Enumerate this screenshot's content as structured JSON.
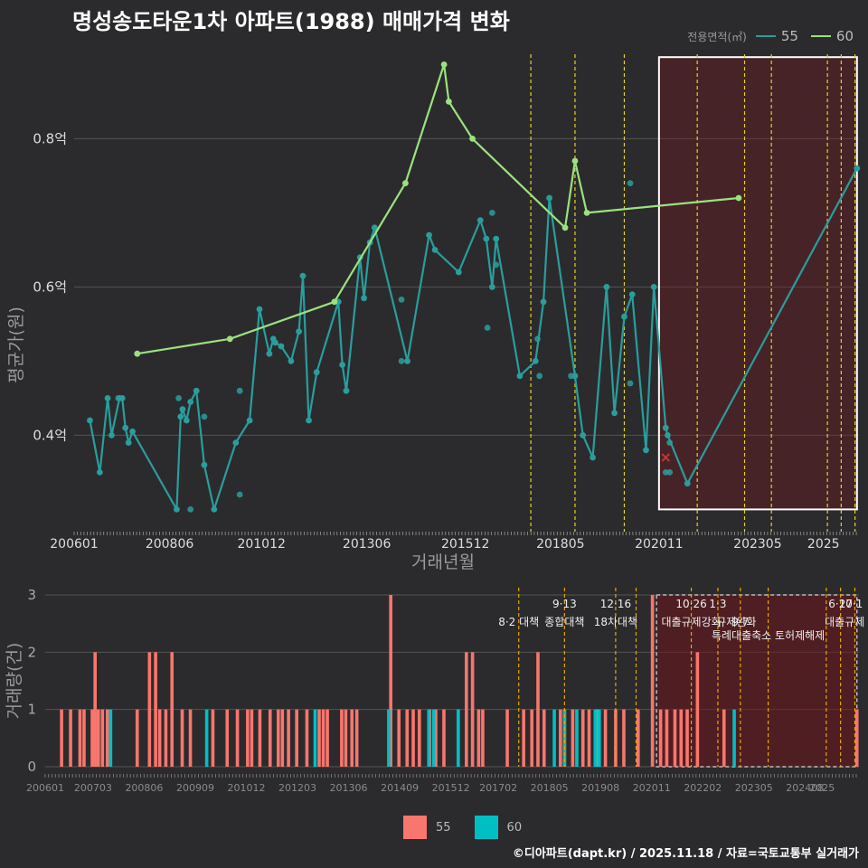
{
  "title": "명성송도타운1차 아파트(1988) 매매가격 변화",
  "footer": "©디아파트(dapt.kr) / 2025.11.18 / 자료=국토교통부 실거래가",
  "legend_top": {
    "title": "전용면적(㎡)",
    "items": [
      {
        "label": "55",
        "color": "#2a9d9c"
      },
      {
        "label": "60",
        "color": "#9be27e"
      }
    ]
  },
  "legend_bottom": {
    "items": [
      {
        "label": "55",
        "color": "#f8766d"
      },
      {
        "label": "60",
        "color": "#00bfc4"
      }
    ]
  },
  "chart_data": [
    {
      "type": "line",
      "title": "명성송도타운1차 아파트(1988) 매매가격 변화",
      "xlabel": "거래년월",
      "ylabel": "평균가(원)",
      "x_range": [
        2006.0,
        2025.9
      ],
      "ylim": [
        0.27,
        0.92
      ],
      "y_ticks": [
        {
          "value": 0.4,
          "label": "0.4억"
        },
        {
          "value": 0.6,
          "label": "0.6억"
        },
        {
          "value": 0.8,
          "label": "0.8억"
        }
      ],
      "x_ticks": [
        {
          "value": 2006.0,
          "label": "200601"
        },
        {
          "value": 2008.42,
          "label": "200806"
        },
        {
          "value": 2010.75,
          "label": "201012"
        },
        {
          "value": 2013.42,
          "label": "201306"
        },
        {
          "value": 2015.92,
          "label": "201512"
        },
        {
          "value": 2018.33,
          "label": "201805"
        },
        {
          "value": 2020.83,
          "label": "202011"
        },
        {
          "value": 2023.33,
          "label": "202305"
        },
        {
          "value": 2025.0,
          "label": "2025"
        }
      ],
      "highlight": {
        "x_start": 2020.83,
        "x_end": 2025.85,
        "y_start": 0.3,
        "y_end": 0.91
      },
      "policy_lines": [
        2017.58,
        2018.7,
        2019.95,
        2021.8,
        2023.0,
        2023.68,
        2025.1,
        2025.45,
        2025.8
      ],
      "series": [
        {
          "name": "55",
          "points": [
            [
              2006.4,
              0.42
            ],
            [
              2006.65,
              0.35
            ],
            [
              2006.85,
              0.45
            ],
            [
              2006.95,
              0.4
            ],
            [
              2007.15,
              0.45
            ],
            [
              2007.22,
              0.45
            ],
            [
              2007.3,
              0.41
            ],
            [
              2007.38,
              0.39
            ],
            [
              2007.48,
              0.405
            ],
            [
              2008.6,
              0.3
            ],
            [
              2008.7,
              0.425
            ],
            [
              2008.75,
              0.435
            ],
            [
              2008.85,
              0.42
            ],
            [
              2008.95,
              0.445
            ],
            [
              2009.1,
              0.46
            ],
            [
              2009.3,
              0.36
            ],
            [
              2009.55,
              0.3
            ],
            [
              2010.1,
              0.39
            ],
            [
              2010.45,
              0.42
            ],
            [
              2010.7,
              0.57
            ],
            [
              2010.95,
              0.51
            ],
            [
              2011.05,
              0.53
            ],
            [
              2011.1,
              0.525
            ],
            [
              2011.25,
              0.52
            ],
            [
              2011.5,
              0.5
            ],
            [
              2011.7,
              0.54
            ],
            [
              2011.8,
              0.615
            ],
            [
              2011.95,
              0.42
            ],
            [
              2012.15,
              0.485
            ],
            [
              2012.7,
              0.58
            ],
            [
              2012.8,
              0.495
            ],
            [
              2012.9,
              0.46
            ],
            [
              2013.25,
              0.64
            ],
            [
              2013.35,
              0.585
            ],
            [
              2013.5,
              0.66
            ],
            [
              2013.62,
              0.68
            ],
            [
              2014.45,
              0.5
            ],
            [
              2015.0,
              0.67
            ],
            [
              2015.15,
              0.65
            ],
            [
              2015.75,
              0.62
            ],
            [
              2016.3,
              0.69
            ],
            [
              2016.45,
              0.665
            ],
            [
              2016.6,
              0.6
            ],
            [
              2016.7,
              0.665
            ],
            [
              2017.3,
              0.48
            ],
            [
              2017.7,
              0.5
            ],
            [
              2017.9,
              0.58
            ],
            [
              2018.05,
              0.72
            ],
            [
              2018.7,
              0.48
            ],
            [
              2018.9,
              0.4
            ],
            [
              2019.15,
              0.37
            ],
            [
              2019.5,
              0.6
            ],
            [
              2019.7,
              0.43
            ],
            [
              2019.95,
              0.56
            ],
            [
              2020.15,
              0.59
            ],
            [
              2020.5,
              0.38
            ],
            [
              2020.7,
              0.6
            ],
            [
              2021.0,
              0.41
            ],
            [
              2021.05,
              0.4
            ],
            [
              2021.55,
              0.335
            ],
            [
              2025.85,
              0.76
            ]
          ]
        },
        {
          "name": "60",
          "points": [
            [
              2007.6,
              0.51
            ],
            [
              2009.95,
              0.53
            ],
            [
              2012.6,
              0.58
            ],
            [
              2014.4,
              0.74
            ],
            [
              2015.38,
              0.9
            ],
            [
              2015.5,
              0.85
            ],
            [
              2016.1,
              0.8
            ],
            [
              2018.45,
              0.68
            ],
            [
              2018.7,
              0.77
            ],
            [
              2019.0,
              0.7
            ],
            [
              2022.85,
              0.72
            ]
          ]
        }
      ],
      "scatter_55": [
        [
          2007.12,
          0.45
        ],
        [
          2008.65,
          0.45
        ],
        [
          2010.2,
          0.46
        ],
        [
          2010.2,
          0.32
        ],
        [
          2008.95,
          0.3
        ],
        [
          2009.3,
          0.425
        ],
        [
          2014.3,
          0.583
        ],
        [
          2014.3,
          0.5
        ],
        [
          2016.48,
          0.545
        ],
        [
          2016.6,
          0.7
        ],
        [
          2016.7,
          0.63
        ],
        [
          2017.75,
          0.53
        ],
        [
          2017.8,
          0.48
        ],
        [
          2018.6,
          0.48
        ],
        [
          2020.1,
          0.74
        ],
        [
          2020.1,
          0.47
        ],
        [
          2021.1,
          0.39
        ],
        [
          2021.0,
          0.35
        ],
        [
          2021.1,
          0.35
        ]
      ]
    },
    {
      "type": "bar",
      "xlabel": "",
      "ylabel": "거래량(건)",
      "ylim": [
        0,
        3
      ],
      "y_ticks": [
        0,
        1,
        2,
        3
      ],
      "x_ticks": [
        "200601",
        "200703",
        "200806",
        "200909",
        "201012",
        "201203",
        "201306",
        "201409",
        "201512",
        "201702",
        "201805",
        "201908",
        "202011",
        "202202",
        "202305",
        "202408",
        "2025"
      ],
      "x_tick_values": [
        2006.0,
        2007.17,
        2008.42,
        2009.67,
        2010.92,
        2012.17,
        2013.42,
        2014.67,
        2015.92,
        2017.08,
        2018.33,
        2019.58,
        2020.83,
        2022.08,
        2023.33,
        2024.58,
        2025.0
      ],
      "policy_lines": [
        2017.58,
        2018.7,
        2019.95,
        2020.45,
        2021.8,
        2022.45,
        2023.0,
        2023.68,
        2025.1,
        2025.45,
        2025.8
      ],
      "annotations": [
        {
          "x": 2017.58,
          "row": 0,
          "text": "8·2 대책"
        },
        {
          "x": 2018.7,
          "row": -1,
          "text": "9·13"
        },
        {
          "x": 2018.7,
          "row": 0,
          "text": "종합대책"
        },
        {
          "x": 2019.95,
          "row": -1,
          "text": "12·16"
        },
        {
          "x": 2019.95,
          "row": 0,
          "text": "18차대책"
        },
        {
          "x": 2021.8,
          "row": -1,
          "text": "10·26"
        },
        {
          "x": 2021.8,
          "row": 0,
          "text": "대출규제강화"
        },
        {
          "x": 2022.45,
          "row": -1,
          "text": "1·3"
        },
        {
          "x": 2022.9,
          "row": 0,
          "text": "규제완화"
        },
        {
          "x": 2023.0,
          "row": 0,
          "text": "9·7"
        },
        {
          "x": 2023.68,
          "row": 1,
          "text": "특례대출축소 토허제해제"
        },
        {
          "x": 2025.45,
          "row": -1,
          "text": "6·27"
        },
        {
          "x": 2025.7,
          "row": -1,
          "text": "10·1"
        },
        {
          "x": 2025.55,
          "row": 0,
          "text": "대출규제"
        }
      ],
      "highlight": {
        "x_start": 2020.95,
        "x_end": 2025.85
      },
      "series": [
        {
          "name": "55",
          "bars": [
            [
              2006.4,
              1
            ],
            [
              2006.62,
              1
            ],
            [
              2006.85,
              1
            ],
            [
              2006.95,
              1
            ],
            [
              2007.15,
              1
            ],
            [
              2007.22,
              2
            ],
            [
              2007.3,
              1
            ],
            [
              2007.4,
              1
            ],
            [
              2007.52,
              1
            ],
            [
              2008.25,
              1
            ],
            [
              2008.55,
              2
            ],
            [
              2008.7,
              2
            ],
            [
              2008.8,
              1
            ],
            [
              2008.95,
              1
            ],
            [
              2009.1,
              2
            ],
            [
              2009.35,
              1
            ],
            [
              2009.55,
              1
            ],
            [
              2010.1,
              1
            ],
            [
              2010.45,
              1
            ],
            [
              2010.7,
              1
            ],
            [
              2010.95,
              1
            ],
            [
              2011.05,
              1
            ],
            [
              2011.25,
              1
            ],
            [
              2011.5,
              1
            ],
            [
              2011.7,
              1
            ],
            [
              2011.8,
              1
            ],
            [
              2011.95,
              1
            ],
            [
              2012.15,
              1
            ],
            [
              2012.4,
              1
            ],
            [
              2012.7,
              1
            ],
            [
              2012.8,
              1
            ],
            [
              2012.9,
              1
            ],
            [
              2013.25,
              1
            ],
            [
              2013.35,
              1
            ],
            [
              2013.5,
              1
            ],
            [
              2013.62,
              1
            ],
            [
              2014.45,
              3
            ],
            [
              2014.65,
              1
            ],
            [
              2014.85,
              1
            ],
            [
              2015.0,
              1
            ],
            [
              2015.15,
              1
            ],
            [
              2015.4,
              1
            ],
            [
              2015.55,
              1
            ],
            [
              2015.75,
              1
            ],
            [
              2016.1,
              1
            ],
            [
              2016.3,
              2
            ],
            [
              2016.45,
              2
            ],
            [
              2016.6,
              1
            ],
            [
              2016.7,
              1
            ],
            [
              2017.3,
              1
            ],
            [
              2017.7,
              1
            ],
            [
              2017.9,
              1
            ],
            [
              2018.05,
              2
            ],
            [
              2018.2,
              1
            ],
            [
              2018.6,
              1
            ],
            [
              2018.7,
              1
            ],
            [
              2018.9,
              1
            ],
            [
              2019.15,
              1
            ],
            [
              2019.3,
              1
            ],
            [
              2019.5,
              1
            ],
            [
              2019.7,
              1
            ],
            [
              2019.95,
              1
            ],
            [
              2020.15,
              1
            ],
            [
              2020.5,
              1
            ],
            [
              2020.85,
              3
            ],
            [
              2021.05,
              1
            ],
            [
              2021.2,
              1
            ],
            [
              2021.4,
              1
            ],
            [
              2021.55,
              1
            ],
            [
              2021.7,
              1
            ],
            [
              2021.95,
              2
            ],
            [
              2022.6,
              1
            ],
            [
              2025.85,
              1
            ]
          ]
        },
        {
          "name": "60",
          "bars": [
            [
              2007.6,
              1
            ],
            [
              2009.95,
              1
            ],
            [
              2012.6,
              1
            ],
            [
              2014.4,
              1
            ],
            [
              2015.38,
              1
            ],
            [
              2015.5,
              1
            ],
            [
              2016.1,
              1
            ],
            [
              2018.45,
              1
            ],
            [
              2018.7,
              1
            ],
            [
              2019.0,
              1
            ],
            [
              2019.45,
              1
            ],
            [
              2019.55,
              1
            ],
            [
              2022.85,
              1
            ]
          ]
        }
      ]
    }
  ]
}
